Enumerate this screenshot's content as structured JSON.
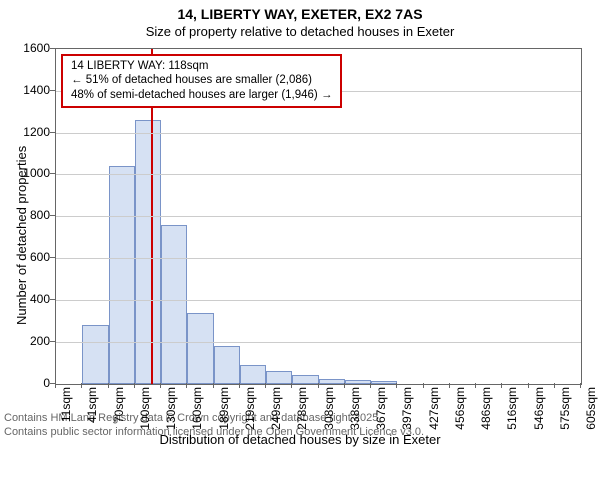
{
  "title_line1": "14, LIBERTY WAY, EXETER, EX2 7AS",
  "title_line2": "Size of property relative to detached houses in Exeter",
  "chart": {
    "type": "histogram",
    "background_color": "#ffffff",
    "grid_color": "#cccccc",
    "axis_color": "#666666",
    "bar_fill": "#d6e1f3",
    "bar_border": "#7a94c8",
    "marker_color": "#cc0000",
    "title_fontsize": 14,
    "label_fontsize": 12,
    "ylabel": "Number of detached properties",
    "xlabel": "Distribution of detached houses by size in Exeter",
    "ylim": [
      0,
      1600
    ],
    "ytick_step": 200,
    "yticks": [
      0,
      200,
      400,
      600,
      800,
      1000,
      1200,
      1400,
      1600
    ],
    "x_categories": [
      "11sqm",
      "41sqm",
      "70sqm",
      "100sqm",
      "130sqm",
      "160sqm",
      "189sqm",
      "219sqm",
      "249sqm",
      "278sqm",
      "308sqm",
      "338sqm",
      "367sqm",
      "397sqm",
      "427sqm",
      "456sqm",
      "486sqm",
      "516sqm",
      "546sqm",
      "575sqm",
      "605sqm"
    ],
    "values": [
      0,
      280,
      1040,
      1260,
      760,
      340,
      180,
      90,
      60,
      40,
      25,
      20,
      15,
      0,
      0,
      0,
      0,
      0,
      0,
      0
    ],
    "bar_width": 1.0,
    "marker_value_sqm": 118,
    "legend": {
      "border_color": "#cc0000",
      "lines": [
        "14 LIBERTY WAY: 118sqm",
        "← 51% of detached houses are smaller (2,086)",
        "48% of semi-detached houses are larger (1,946) →"
      ]
    }
  },
  "footer": {
    "color": "#666666",
    "lines": [
      "Contains HM Land Registry data © Crown copyright and database right 2025.",
      "Contains public sector information licensed under the Open Government Licence v3.0."
    ]
  }
}
